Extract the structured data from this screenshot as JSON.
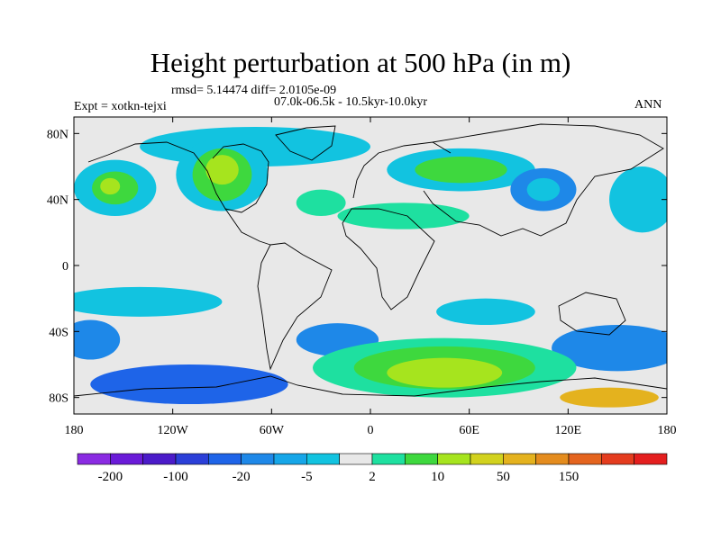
{
  "title": "Height perturbation at 500 hPa (in m)",
  "stats": "rmsd= 5.14474 diff= 2.0105e-09",
  "period": "07.0k-06.5k - 10.5kyr-10.0kyr",
  "experiment": "Expt = xotkn-tejxi",
  "season": "ANN",
  "map": {
    "lon_range": [
      -180,
      180
    ],
    "lat_range": [
      -90,
      90
    ],
    "x_tick_values": [
      -180,
      -120,
      -60,
      0,
      60,
      120,
      180
    ],
    "x_tick_labels": [
      "180",
      "120W",
      "60W",
      "0",
      "60E",
      "120E",
      "180"
    ],
    "y_tick_values": [
      80,
      40,
      0,
      -40,
      -80
    ],
    "y_tick_labels": [
      "80N",
      "40N",
      "0",
      "40S",
      "80S"
    ]
  },
  "colorbar": {
    "colors": [
      "#8a2be2",
      "#6a1bd8",
      "#4b1bc9",
      "#2b3fd8",
      "#1e64e8",
      "#1e88e8",
      "#16a6e8",
      "#12c3e0",
      "#e8e8e8",
      "#1ee0a0",
      "#3ed83e",
      "#a6e41e",
      "#d2d21e",
      "#e4b21e",
      "#e48c1e",
      "#e4641e",
      "#e43c1e",
      "#e41e1e"
    ],
    "ticks": [
      "-200",
      "-100",
      "-20",
      "-5",
      "2",
      "10",
      "50",
      "150"
    ]
  },
  "field_regions": [
    {
      "id": "pac-n-1",
      "lon": -155,
      "lat": 47,
      "rlon": 25,
      "rlat": 17,
      "color": "#12c3e0"
    },
    {
      "id": "pac-n-2",
      "lon": -155,
      "lat": 47,
      "rlon": 14,
      "rlat": 10,
      "color": "#3ed83e"
    },
    {
      "id": "pac-n-3",
      "lon": -158,
      "lat": 48,
      "rlon": 6,
      "rlat": 5,
      "color": "#a6e41e"
    },
    {
      "id": "arc-n",
      "lon": -70,
      "lat": 72,
      "rlon": 70,
      "rlat": 12,
      "color": "#12c3e0"
    },
    {
      "id": "nam-1",
      "lon": -90,
      "lat": 55,
      "rlon": 28,
      "rlat": 22,
      "color": "#12c3e0"
    },
    {
      "id": "nam-2",
      "lon": -90,
      "lat": 55,
      "rlon": 18,
      "rlat": 16,
      "color": "#3ed83e"
    },
    {
      "id": "nam-3",
      "lon": -90,
      "lat": 58,
      "rlon": 10,
      "rlat": 9,
      "color": "#a6e41e"
    },
    {
      "id": "eur-1",
      "lon": 55,
      "lat": 58,
      "rlon": 45,
      "rlat": 13,
      "color": "#12c3e0"
    },
    {
      "id": "eur-2",
      "lon": 55,
      "lat": 58,
      "rlon": 28,
      "rlat": 8,
      "color": "#3ed83e"
    },
    {
      "id": "asia-1",
      "lon": 105,
      "lat": 46,
      "rlon": 20,
      "rlat": 13,
      "color": "#1e88e8"
    },
    {
      "id": "asia-2",
      "lon": 105,
      "lat": 46,
      "rlon": 10,
      "rlat": 7,
      "color": "#12c3e0"
    },
    {
      "id": "npac-e",
      "lon": 165,
      "lat": 40,
      "rlon": 20,
      "rlat": 20,
      "color": "#12c3e0"
    },
    {
      "id": "natl",
      "lon": -30,
      "lat": 38,
      "rlon": 15,
      "rlat": 8,
      "color": "#1ee0a0"
    },
    {
      "id": "afr-n",
      "lon": 20,
      "lat": 30,
      "rlon": 40,
      "rlat": 8,
      "color": "#1ee0a0"
    },
    {
      "id": "spac-1",
      "lon": -140,
      "lat": -22,
      "rlon": 50,
      "rlat": 9,
      "color": "#12c3e0"
    },
    {
      "id": "spac-2",
      "lon": -170,
      "lat": -45,
      "rlon": 18,
      "rlat": 12,
      "color": "#1e88e8"
    },
    {
      "id": "satl",
      "lon": -20,
      "lat": -45,
      "rlon": 25,
      "rlat": 10,
      "color": "#1e88e8"
    },
    {
      "id": "ind-s",
      "lon": 70,
      "lat": -28,
      "rlon": 30,
      "rlat": 8,
      "color": "#12c3e0"
    },
    {
      "id": "aus-s",
      "lon": 150,
      "lat": -50,
      "rlon": 40,
      "rlat": 14,
      "color": "#1e88e8"
    },
    {
      "id": "so-1",
      "lon": 45,
      "lat": -62,
      "rlon": 80,
      "rlat": 18,
      "color": "#1ee0a0"
    },
    {
      "id": "so-2",
      "lon": 45,
      "lat": -62,
      "rlon": 55,
      "rlat": 13,
      "color": "#3ed83e"
    },
    {
      "id": "so-3",
      "lon": 45,
      "lat": -65,
      "rlon": 35,
      "rlat": 9,
      "color": "#a6e41e"
    },
    {
      "id": "ant-e",
      "lon": 145,
      "lat": -80,
      "rlon": 30,
      "rlat": 6,
      "color": "#e4b21e"
    },
    {
      "id": "ant-w",
      "lon": -110,
      "lat": -72,
      "rlon": 60,
      "rlat": 12,
      "color": "#1e64e8"
    }
  ]
}
